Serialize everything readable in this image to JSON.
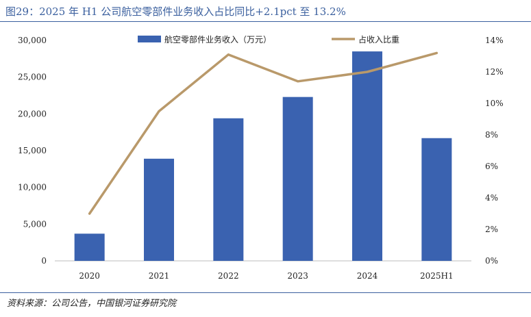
{
  "figure": {
    "title": "图29：2025 年 H1 公司航空零部件业务收入占比同比+2.1pct 至 13.2%",
    "source": "资料来源：公司公告，中国银河证券研究院"
  },
  "chart_data": {
    "type": "bar",
    "categories": [
      "2020",
      "2021",
      "2022",
      "2023",
      "2024",
      "2025H1"
    ],
    "series": [
      {
        "name": "航空零部件业务收入（万元）",
        "type": "bar",
        "axis": "left",
        "color": "#3a62b0",
        "values": [
          3700,
          13900,
          19400,
          22300,
          28500,
          16700
        ]
      },
      {
        "name": "占收入比重",
        "type": "line",
        "axis": "right",
        "color": "#b9996a",
        "values": [
          3.0,
          9.5,
          13.1,
          11.4,
          12.0,
          13.2
        ]
      }
    ],
    "y_left": {
      "ylim": [
        0,
        30000
      ],
      "ticks": [
        0,
        5000,
        10000,
        15000,
        20000,
        25000,
        30000
      ],
      "tick_labels": [
        "0",
        "5,000",
        "10,000",
        "15,000",
        "20,000",
        "25,000",
        "30,000"
      ]
    },
    "y_right": {
      "ylim": [
        0,
        14
      ],
      "ticks": [
        0,
        2,
        4,
        6,
        8,
        10,
        12,
        14
      ],
      "tick_labels": [
        "0%",
        "2%",
        "4%",
        "6%",
        "8%",
        "10%",
        "12%",
        "14%"
      ]
    },
    "grid": false,
    "legend_position": "top"
  }
}
